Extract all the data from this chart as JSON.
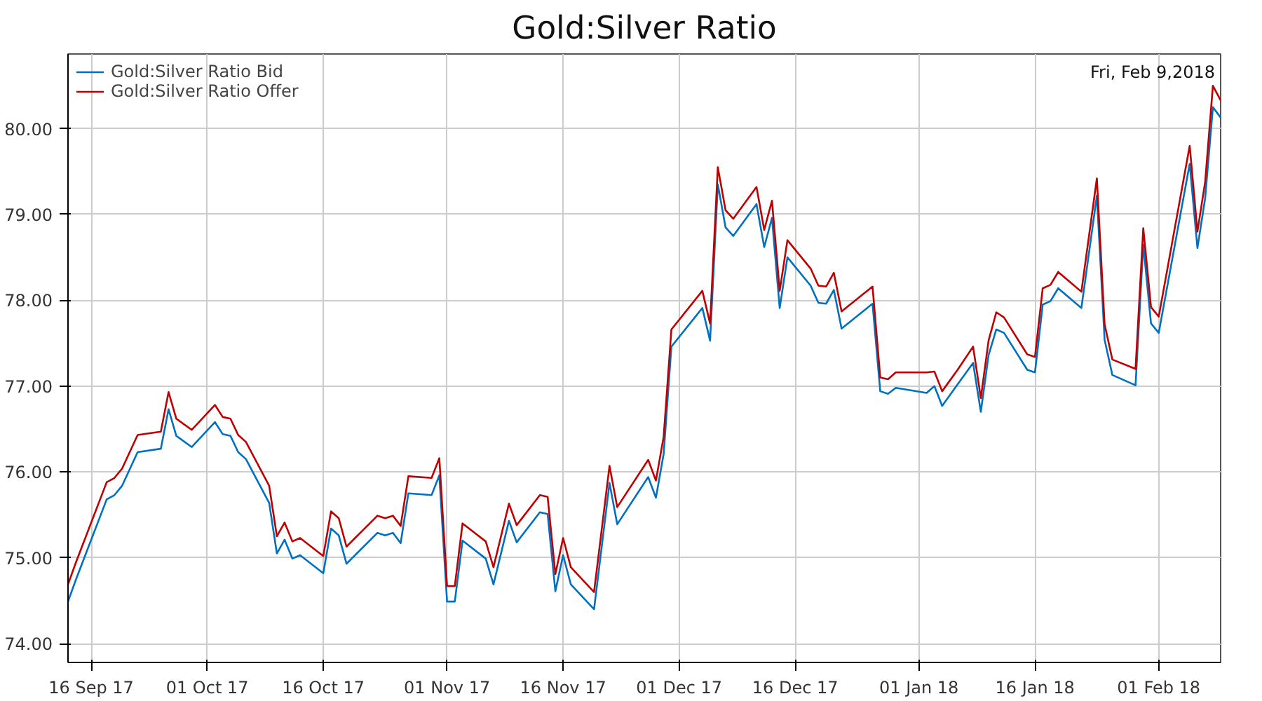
{
  "chart_data": {
    "type": "line",
    "title": "Gold:Silver Ratio",
    "annotations": [
      "Fri, Feb 9,2018"
    ],
    "x": [
      "2017-09-13",
      "2017-09-14",
      "2017-09-18",
      "2017-09-19",
      "2017-09-20",
      "2017-09-22",
      "2017-09-25",
      "2017-09-26",
      "2017-09-27",
      "2017-09-29",
      "2017-10-02",
      "2017-10-03",
      "2017-10-04",
      "2017-10-05",
      "2017-10-06",
      "2017-10-09",
      "2017-10-10",
      "2017-10-11",
      "2017-10-12",
      "2017-10-13",
      "2017-10-16",
      "2017-10-17",
      "2017-10-18",
      "2017-10-19",
      "2017-10-23",
      "2017-10-24",
      "2017-10-25",
      "2017-10-26",
      "2017-10-27",
      "2017-10-30",
      "2017-10-31",
      "2017-11-01",
      "2017-11-02",
      "2017-11-03",
      "2017-11-06",
      "2017-11-07",
      "2017-11-09",
      "2017-11-10",
      "2017-11-13",
      "2017-11-14",
      "2017-11-15",
      "2017-11-16",
      "2017-11-17",
      "2017-11-20",
      "2017-11-22",
      "2017-11-23",
      "2017-11-27",
      "2017-11-28",
      "2017-11-29",
      "2017-11-30",
      "2017-12-04",
      "2017-12-05",
      "2017-12-06",
      "2017-12-07",
      "2017-12-08",
      "2017-12-11",
      "2017-12-12",
      "2017-12-13",
      "2017-12-14",
      "2017-12-15",
      "2017-12-18",
      "2017-12-19",
      "2017-12-20",
      "2017-12-21",
      "2017-12-22",
      "2017-12-26",
      "2017-12-27",
      "2017-12-28",
      "2017-12-29",
      "2018-01-02",
      "2018-01-03",
      "2018-01-04",
      "2018-01-06",
      "2018-01-08",
      "2018-01-09",
      "2018-01-10",
      "2018-01-11",
      "2018-01-12",
      "2018-01-15",
      "2018-01-16",
      "2018-01-17",
      "2018-01-18",
      "2018-01-19",
      "2018-01-22",
      "2018-01-24",
      "2018-01-25",
      "2018-01-26",
      "2018-01-29",
      "2018-01-30",
      "2018-01-31",
      "2018-02-01",
      "2018-02-05",
      "2018-02-06",
      "2018-02-07",
      "2018-02-08",
      "2018-02-09"
    ],
    "series": [
      {
        "name": "Gold:Silver Ratio Bid",
        "color": "#0070c0",
        "values": [
          74.49,
          74.74,
          75.68,
          75.73,
          75.84,
          76.23,
          76.27,
          76.73,
          76.42,
          76.29,
          76.58,
          76.44,
          76.42,
          76.23,
          76.15,
          75.64,
          75.05,
          75.21,
          74.99,
          75.03,
          74.82,
          75.34,
          75.26,
          74.93,
          75.29,
          75.26,
          75.29,
          75.17,
          75.75,
          75.73,
          75.96,
          74.49,
          74.49,
          75.2,
          74.99,
          74.69,
          75.43,
          75.18,
          75.53,
          75.51,
          74.61,
          75.03,
          74.69,
          74.4,
          75.87,
          75.39,
          75.94,
          75.7,
          76.21,
          77.46,
          77.91,
          77.53,
          79.35,
          78.85,
          78.75,
          79.12,
          78.62,
          78.96,
          77.91,
          78.5,
          78.17,
          77.97,
          77.96,
          78.12,
          77.67,
          77.96,
          76.94,
          76.91,
          76.98,
          76.92,
          77.0,
          76.77,
          77.02,
          77.27,
          76.7,
          77.36,
          77.66,
          77.62,
          77.19,
          77.16,
          77.95,
          77.99,
          78.14,
          77.91,
          79.22,
          77.54,
          77.13,
          77.01,
          78.65,
          77.73,
          77.62,
          79.59,
          78.61,
          79.19,
          80.25,
          80.13
        ]
      },
      {
        "name": "Gold:Silver Ratio Offer",
        "color": "#c00000",
        "values": [
          74.69,
          74.94,
          75.88,
          75.93,
          76.04,
          76.43,
          76.47,
          76.93,
          76.62,
          76.49,
          76.78,
          76.64,
          76.62,
          76.43,
          76.35,
          75.84,
          75.25,
          75.41,
          75.19,
          75.23,
          75.02,
          75.54,
          75.46,
          75.13,
          75.49,
          75.46,
          75.49,
          75.37,
          75.95,
          75.93,
          76.16,
          74.67,
          74.67,
          75.4,
          75.19,
          74.89,
          75.63,
          75.38,
          75.73,
          75.71,
          74.81,
          75.23,
          74.89,
          74.6,
          76.07,
          75.59,
          76.14,
          75.9,
          76.41,
          77.66,
          78.11,
          77.73,
          79.55,
          79.05,
          78.95,
          79.32,
          78.82,
          79.16,
          78.11,
          78.7,
          78.37,
          78.17,
          78.16,
          78.32,
          77.87,
          78.16,
          77.1,
          77.08,
          77.16,
          77.16,
          77.17,
          76.94,
          77.19,
          77.46,
          76.86,
          77.53,
          77.86,
          77.8,
          77.37,
          77.34,
          78.14,
          78.18,
          78.33,
          78.1,
          79.42,
          77.72,
          77.31,
          77.2,
          78.84,
          77.92,
          77.81,
          79.8,
          78.8,
          79.38,
          80.5,
          80.33
        ]
      }
    ],
    "xlim": [
      "2017-09-13",
      "2018-02-09"
    ],
    "xticks": [
      {
        "value": "2017-09-16",
        "label": "16 Sep 17"
      },
      {
        "value": "2017-10-01",
        "label": "01 Oct 17"
      },
      {
        "value": "2017-10-16",
        "label": "16 Oct 17"
      },
      {
        "value": "2017-11-01",
        "label": "01 Nov 17"
      },
      {
        "value": "2017-11-16",
        "label": "16 Nov 17"
      },
      {
        "value": "2017-12-01",
        "label": "01 Dec 17"
      },
      {
        "value": "2017-12-16",
        "label": "16 Dec 17"
      },
      {
        "value": "2018-01-01",
        "label": "01 Jan 18"
      },
      {
        "value": "2018-01-16",
        "label": "16 Jan 18"
      },
      {
        "value": "2018-02-01",
        "label": "01 Feb 18"
      }
    ],
    "ylim": [
      73.78,
      80.87
    ],
    "yticks": [
      {
        "value": 74,
        "label": "74.00"
      },
      {
        "value": 75,
        "label": "75.00"
      },
      {
        "value": 76,
        "label": "76.00"
      },
      {
        "value": 77,
        "label": "77.00"
      },
      {
        "value": 78,
        "label": "78.00"
      },
      {
        "value": 79,
        "label": "79.00"
      },
      {
        "value": 80,
        "label": "80.00"
      }
    ],
    "grid": true,
    "legend": "top left",
    "marker": "none",
    "line_style": "solid"
  }
}
